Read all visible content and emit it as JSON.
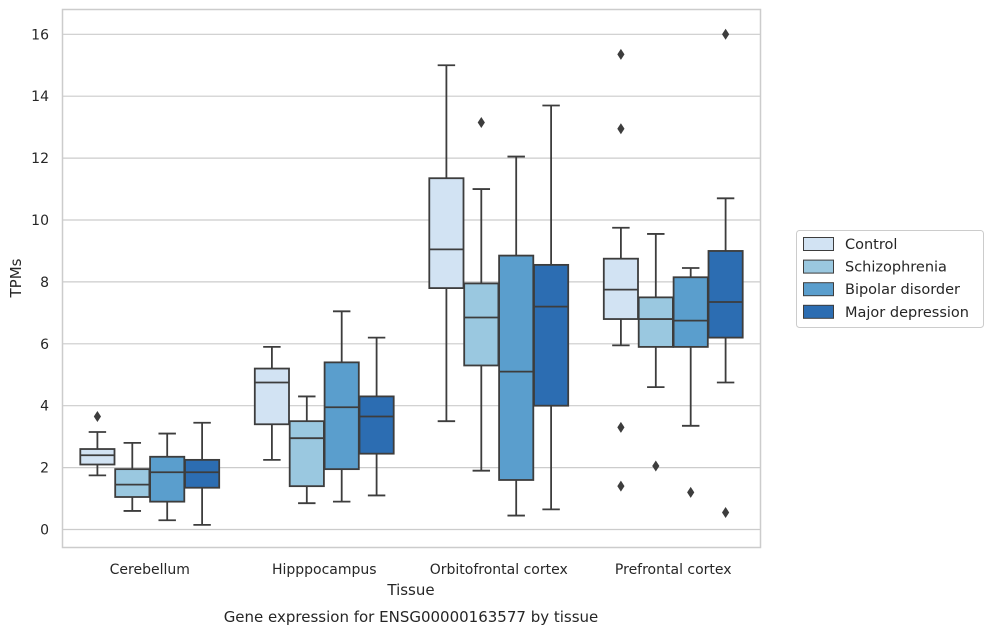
{
  "chart_data": {
    "type": "boxplot",
    "xlabel": "Tissue",
    "ylabel": "TPMs",
    "caption": "Gene expression for ENSG00000163577 by tissue",
    "ylim": [
      -0.6,
      16.8
    ],
    "yticks": [
      0,
      2,
      4,
      6,
      8,
      10,
      12,
      14,
      16
    ],
    "grid": true,
    "legend_position": "right",
    "categories": [
      "Cerebellum",
      "Hipppocampus",
      "Orbitofrontal cortex",
      "Prefrontal cortex"
    ],
    "series": [
      {
        "name": "Control",
        "color": "#d2e3f3",
        "boxes": [
          {
            "whislo": 1.75,
            "q1": 2.1,
            "med": 2.4,
            "q3": 2.6,
            "whishi": 3.15,
            "fliers": [
              3.65
            ]
          },
          {
            "whislo": 2.25,
            "q1": 3.4,
            "med": 4.75,
            "q3": 5.2,
            "whishi": 5.9,
            "fliers": []
          },
          {
            "whislo": 3.5,
            "q1": 7.8,
            "med": 9.05,
            "q3": 11.35,
            "whishi": 15.0,
            "fliers": []
          },
          {
            "whislo": 5.95,
            "q1": 6.8,
            "med": 7.75,
            "q3": 8.75,
            "whishi": 9.75,
            "fliers": [
              15.35,
              12.95,
              3.3,
              1.4
            ]
          }
        ]
      },
      {
        "name": "Schizophrenia",
        "color": "#9ac8e0",
        "boxes": [
          {
            "whislo": 0.6,
            "q1": 1.05,
            "med": 1.45,
            "q3": 1.95,
            "whishi": 2.8,
            "fliers": []
          },
          {
            "whislo": 0.85,
            "q1": 1.4,
            "med": 2.95,
            "q3": 3.5,
            "whishi": 4.3,
            "fliers": []
          },
          {
            "whislo": 1.9,
            "q1": 5.3,
            "med": 6.85,
            "q3": 7.95,
            "whishi": 11.0,
            "fliers": [
              13.15
            ]
          },
          {
            "whislo": 4.6,
            "q1": 5.9,
            "med": 6.8,
            "q3": 7.5,
            "whishi": 9.55,
            "fliers": [
              2.05
            ]
          }
        ]
      },
      {
        "name": "Bipolar disorder",
        "color": "#5a9ecd",
        "boxes": [
          {
            "whislo": 0.3,
            "q1": 0.9,
            "med": 1.85,
            "q3": 2.35,
            "whishi": 3.1,
            "fliers": []
          },
          {
            "whislo": 0.9,
            "q1": 1.95,
            "med": 3.95,
            "q3": 5.4,
            "whishi": 7.05,
            "fliers": []
          },
          {
            "whislo": 0.45,
            "q1": 1.6,
            "med": 5.1,
            "q3": 8.85,
            "whishi": 12.05,
            "fliers": []
          },
          {
            "whislo": 3.35,
            "q1": 5.9,
            "med": 6.75,
            "q3": 8.15,
            "whishi": 8.45,
            "fliers": [
              1.2
            ]
          }
        ]
      },
      {
        "name": "Major depression",
        "color": "#2c6db2",
        "boxes": [
          {
            "whislo": 0.15,
            "q1": 1.35,
            "med": 1.85,
            "q3": 2.25,
            "whishi": 3.45,
            "fliers": []
          },
          {
            "whislo": 1.1,
            "q1": 2.45,
            "med": 3.65,
            "q3": 4.3,
            "whishi": 6.2,
            "fliers": []
          },
          {
            "whislo": 0.65,
            "q1": 4.0,
            "med": 7.2,
            "q3": 8.55,
            "whishi": 13.7,
            "fliers": []
          },
          {
            "whislo": 4.75,
            "q1": 6.2,
            "med": 7.35,
            "q3": 9.0,
            "whishi": 10.7,
            "fliers": [
              16.0,
              0.55
            ]
          }
        ]
      }
    ]
  }
}
